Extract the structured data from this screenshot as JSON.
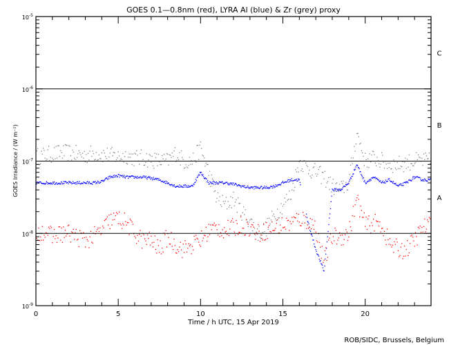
{
  "chart_data": {
    "type": "scatter",
    "title": "GOES 0.1—0.8nm (red), LYRA Al (blue) & Zr (grey) proxy",
    "xlabel": "Time / h UTC, 15 Apr 2019",
    "ylabel": "GOES Irradiance / (W m⁻²)",
    "xlim": [
      0,
      24
    ],
    "ylim": [
      1e-09,
      1e-05
    ],
    "yscale": "log",
    "x_ticks": [
      "0",
      "5",
      "10",
      "15",
      "20"
    ],
    "y_ticks": [
      {
        "base": "10",
        "exp": "-5",
        "value": 1e-05
      },
      {
        "base": "10",
        "exp": "-6",
        "value": 1e-06
      },
      {
        "base": "10",
        "exp": "-7",
        "value": 1e-07
      },
      {
        "base": "10",
        "exp": "-8",
        "value": 1e-08
      },
      {
        "base": "10",
        "exp": "-9",
        "value": 1e-09
      }
    ],
    "flare_classes": [
      {
        "label": "C",
        "value": 3.16e-06
      },
      {
        "label": "B",
        "value": 3.16e-07
      },
      {
        "label": "A",
        "value": 3.16e-08
      }
    ],
    "threshold_lines": [
      1e-06,
      1e-07,
      1e-08
    ],
    "x": [
      0,
      0.5,
      1,
      1.5,
      2,
      2.5,
      3,
      3.5,
      4,
      4.5,
      5,
      5.5,
      6,
      6.5,
      7,
      7.5,
      8,
      8.5,
      9,
      9.5,
      10,
      10.5,
      11,
      11.5,
      12,
      12.5,
      13,
      13.5,
      14,
      14.5,
      15,
      15.5,
      16,
      16.5,
      17,
      17.5,
      18,
      18.5,
      19,
      19.5,
      20,
      20.5,
      21,
      21.5,
      22,
      22.5,
      23,
      23.5,
      24
    ],
    "series": [
      {
        "name": "LYRA Zr proxy",
        "color": "#808080",
        "values": [
          1.15e-07,
          1.2e-07,
          1.25e-07,
          1.3e-07,
          1.3e-07,
          1.25e-07,
          1.2e-07,
          1.3e-07,
          1.25e-07,
          1.2e-07,
          1.15e-07,
          1.2e-07,
          1.1e-07,
          1.1e-07,
          1.05e-07,
          1e-07,
          1e-07,
          1.3e-07,
          1e-07,
          1e-07,
          1.5e-07,
          7e-08,
          3e-08,
          2.5e-08,
          3e-08,
          2e-08,
          1.5e-08,
          1e-08,
          1.2e-08,
          1.8e-08,
          2.5e-08,
          3.5e-08,
          1e-07,
          8e-08,
          7e-08,
          6e-08,
          4.5e-08,
          4e-08,
          5e-08,
          2.5e-07,
          1e-07,
          1.1e-07,
          1e-07,
          9e-08,
          9e-08,
          9.5e-08,
          1e-07,
          1e-07,
          1e-07
        ]
      },
      {
        "name": "LYRA Al proxy",
        "color": "#0000ff",
        "values": [
          5e-08,
          5e-08,
          5e-08,
          5e-08,
          5e-08,
          5e-08,
          5e-08,
          5e-08,
          5.2e-08,
          6e-08,
          6.3e-08,
          6e-08,
          6e-08,
          6e-08,
          5.8e-08,
          5.5e-08,
          5e-08,
          4.5e-08,
          4.5e-08,
          4.5e-08,
          7e-08,
          5e-08,
          5e-08,
          5e-08,
          4.8e-08,
          4.5e-08,
          4.3e-08,
          4.3e-08,
          4.3e-08,
          4.5e-08,
          5e-08,
          5.5e-08,
          5.5e-08,
          1.5e-08,
          6e-09,
          3e-09,
          4e-08,
          4e-08,
          5e-08,
          9e-08,
          5e-08,
          6e-08,
          5e-08,
          5.5e-08,
          4.5e-08,
          5e-08,
          6e-08,
          5.5e-08,
          5.5e-08
        ]
      },
      {
        "name": "GOES 0.1-0.8nm",
        "color": "#ff0000",
        "values": [
          1e-08,
          1.1e-08,
          9e-09,
          1e-08,
          1e-08,
          9e-09,
          8e-09,
          9e-09,
          1.1e-08,
          1.5e-08,
          1.6e-08,
          1.4e-08,
          1e-08,
          8e-09,
          8e-09,
          6e-09,
          9e-09,
          7e-09,
          6e-09,
          7e-09,
          8e-09,
          1.1e-08,
          1.2e-08,
          1.1e-08,
          1.2e-08,
          1.3e-08,
          1.2e-08,
          1e-08,
          1.1e-08,
          1.2e-08,
          1.3e-08,
          1.4e-08,
          1.6e-08,
          1.5e-08,
          1.2e-08,
          4e-09,
          9e-09,
          9e-09,
          1e-08,
          3e-08,
          1.3e-08,
          1.4e-08,
          1.3e-08,
          7e-09,
          6e-09,
          6e-09,
          8e-09,
          1.2e-08,
          1.3e-08
        ]
      }
    ]
  },
  "credit": "ROB/SIDC, Brussels, Belgium"
}
